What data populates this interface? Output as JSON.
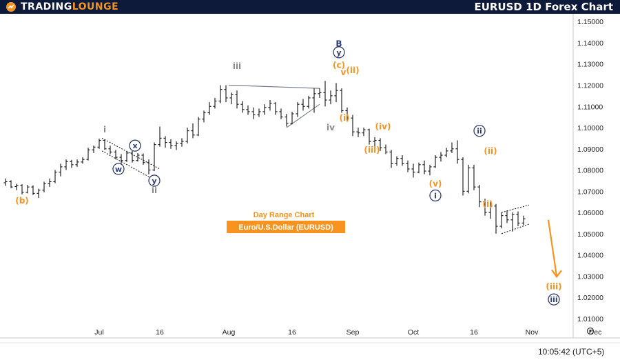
{
  "header": {
    "logo_part1": "TRADING",
    "logo_part2": "LOUNGE",
    "title": "EURUSD 1D Forex Chart"
  },
  "colors": {
    "header_bg": "#0e1a3a",
    "orange": "#f7931e",
    "navy": "#2f3e74",
    "grey": "#8a8a8a",
    "candle": "#111111"
  },
  "chart_data": {
    "type": "candlestick",
    "ylim": [
      1.008,
      1.153
    ],
    "y_ticks": [
      "1.15000",
      "1.14000",
      "1.13000",
      "1.12000",
      "1.11000",
      "1.10000",
      "1.09000",
      "1.08000",
      "1.07000",
      "1.06000",
      "1.05000",
      "1.04000",
      "1.03000",
      "1.02000",
      "1.01000"
    ],
    "x_ticks": [
      {
        "label": "Jul",
        "x": 18
      },
      {
        "label": "16",
        "x": 29
      },
      {
        "label": "Aug",
        "x": 41.5
      },
      {
        "label": "16",
        "x": 53
      },
      {
        "label": "Sep",
        "x": 64
      },
      {
        "label": "Oct",
        "x": 75
      },
      {
        "label": "16",
        "x": 86
      },
      {
        "label": "Nov",
        "x": 96.5
      },
      {
        "label": "Dec",
        "x": 108
      }
    ],
    "candles": [
      [
        1,
        1.074,
        1.076,
        1.0725,
        1.0745
      ],
      [
        2,
        1.0745,
        1.0752,
        1.0715,
        1.072
      ],
      [
        3,
        1.0722,
        1.0735,
        1.0705,
        1.0728
      ],
      [
        4,
        1.0728,
        1.0733,
        1.0685,
        1.0695
      ],
      [
        5,
        1.0695,
        1.073,
        1.069,
        1.072
      ],
      [
        6,
        1.072,
        1.0728,
        1.0682,
        1.069
      ],
      [
        7,
        1.069,
        1.0712,
        1.0668,
        1.0705
      ],
      [
        8,
        1.0705,
        1.0745,
        1.0695,
        1.0735
      ],
      [
        9,
        1.0735,
        1.076,
        1.072,
        1.0745
      ],
      [
        10,
        1.0745,
        1.08,
        1.0738,
        1.079
      ],
      [
        11,
        1.079,
        1.083,
        1.077,
        1.0815
      ],
      [
        12,
        1.0815,
        1.085,
        1.08,
        1.084
      ],
      [
        13,
        1.084,
        1.0848,
        1.081,
        1.0825
      ],
      [
        14,
        1.0825,
        1.085,
        1.0815,
        1.0838
      ],
      [
        15,
        1.0838,
        1.086,
        1.083,
        1.085
      ],
      [
        16,
        1.085,
        1.0905,
        1.0845,
        1.0895
      ],
      [
        17,
        1.0895,
        1.0915,
        1.088,
        1.0908
      ],
      [
        18,
        1.0908,
        1.0948,
        1.09,
        1.094
      ],
      [
        19,
        1.094,
        1.0945,
        1.0895,
        1.09
      ],
      [
        20,
        1.09,
        1.0915,
        1.0875,
        1.0885
      ],
      [
        21,
        1.0885,
        1.0895,
        1.085,
        1.086
      ],
      [
        22,
        1.086,
        1.0875,
        1.083,
        1.0845
      ],
      [
        23,
        1.0845,
        1.089,
        1.0838,
        1.088
      ],
      [
        24,
        1.088,
        1.089,
        1.0835,
        1.0845
      ],
      [
        25,
        1.0845,
        1.088,
        1.084,
        1.087
      ],
      [
        26,
        1.087,
        1.0878,
        1.0825,
        1.0835
      ],
      [
        27,
        1.0835,
        1.085,
        1.078,
        1.08
      ],
      [
        28,
        1.08,
        1.093,
        1.0795,
        1.092
      ],
      [
        29,
        1.092,
        1.1005,
        1.091,
        1.095
      ],
      [
        30,
        1.095,
        1.096,
        1.0905,
        1.093
      ],
      [
        31,
        1.093,
        1.0945,
        1.09,
        1.0915
      ],
      [
        32,
        1.0915,
        1.0935,
        1.0895,
        1.0925
      ],
      [
        33,
        1.0925,
        1.095,
        1.091,
        1.0935
      ],
      [
        34,
        1.0935,
        1.1,
        1.0925,
        1.0985
      ],
      [
        35,
        1.0985,
        1.102,
        1.095,
        1.0965
      ],
      [
        36,
        1.0965,
        1.105,
        1.096,
        1.104
      ],
      [
        37,
        1.104,
        1.108,
        1.1025,
        1.107
      ],
      [
        38,
        1.107,
        1.112,
        1.106,
        1.11
      ],
      [
        39,
        1.11,
        1.114,
        1.109,
        1.1125
      ],
      [
        40,
        1.1125,
        1.12,
        1.1115,
        1.118
      ],
      [
        41,
        1.118,
        1.12,
        1.112,
        1.114
      ],
      [
        42,
        1.114,
        1.1165,
        1.111,
        1.1155
      ],
      [
        43,
        1.1155,
        1.1175,
        1.109,
        1.111
      ],
      [
        44,
        1.111,
        1.1125,
        1.107,
        1.1085
      ],
      [
        45,
        1.1085,
        1.1105,
        1.106,
        1.1075
      ],
      [
        46,
        1.1075,
        1.1095,
        1.104,
        1.106
      ],
      [
        47,
        1.106,
        1.109,
        1.105,
        1.1075
      ],
      [
        48,
        1.1075,
        1.111,
        1.106,
        1.1095
      ],
      [
        49,
        1.1095,
        1.113,
        1.108,
        1.1115
      ],
      [
        50,
        1.1115,
        1.112,
        1.106,
        1.1075
      ],
      [
        51,
        1.1075,
        1.109,
        1.104,
        1.105
      ],
      [
        52,
        1.105,
        1.1065,
        1.1005,
        1.102
      ],
      [
        53,
        1.102,
        1.1075,
        1.1015,
        1.1065
      ],
      [
        54,
        1.1065,
        1.112,
        1.105,
        1.111
      ],
      [
        55,
        1.111,
        1.1135,
        1.108,
        1.11
      ],
      [
        56,
        1.11,
        1.115,
        1.109,
        1.114
      ],
      [
        57,
        1.114,
        1.1185,
        1.107,
        1.116
      ],
      [
        58,
        1.116,
        1.1185,
        1.114,
        1.1165
      ],
      [
        59,
        1.1165,
        1.122,
        1.11,
        1.113
      ],
      [
        60,
        1.113,
        1.1175,
        1.111,
        1.115
      ],
      [
        61,
        1.115,
        1.121,
        1.112,
        1.1175
      ],
      [
        62,
        1.1175,
        1.1185,
        1.107,
        1.108
      ],
      [
        63,
        1.108,
        1.1095,
        1.103,
        1.1045
      ],
      [
        64,
        1.1045,
        1.106,
        1.096,
        1.098
      ],
      [
        65,
        1.098,
        1.1,
        1.0955,
        1.0975
      ],
      [
        66,
        1.0975,
        1.1,
        1.096,
        1.099
      ],
      [
        67,
        1.099,
        1.0995,
        1.092,
        1.0935
      ],
      [
        68,
        1.0935,
        1.0955,
        1.0905,
        1.094
      ],
      [
        69,
        1.094,
        1.095,
        1.089,
        1.0905
      ],
      [
        70,
        1.0905,
        1.092,
        1.0875,
        1.0885
      ],
      [
        71,
        1.0885,
        1.0895,
        1.081,
        1.083
      ],
      [
        72,
        1.083,
        1.0865,
        1.082,
        1.0855
      ],
      [
        73,
        1.0855,
        1.087,
        1.082,
        1.083
      ],
      [
        74,
        1.083,
        1.0845,
        1.079,
        1.0805
      ],
      [
        75,
        1.0805,
        1.083,
        1.0765,
        1.079
      ],
      [
        76,
        1.079,
        1.0835,
        1.0785,
        1.0825
      ],
      [
        77,
        1.0825,
        1.0845,
        1.078,
        1.0795
      ],
      [
        78,
        1.0795,
        1.0825,
        1.0775,
        1.0815
      ],
      [
        79,
        1.0815,
        1.087,
        1.081,
        1.086
      ],
      [
        80,
        1.086,
        1.0885,
        1.084,
        1.087
      ],
      [
        81,
        1.087,
        1.0905,
        1.086,
        1.089
      ],
      [
        82,
        1.089,
        1.093,
        1.088,
        1.09
      ],
      [
        83,
        1.09,
        1.094,
        1.083,
        1.085
      ],
      [
        84,
        1.085,
        1.086,
        1.068,
        1.07
      ],
      [
        85,
        1.07,
        1.0825,
        1.069,
        1.081
      ],
      [
        86,
        1.081,
        1.0825,
        1.0705,
        1.072
      ],
      [
        87,
        1.072,
        1.073,
        1.0625,
        1.065
      ],
      [
        88,
        1.065,
        1.0665,
        1.0585,
        1.06
      ],
      [
        89,
        1.06,
        1.065,
        1.057,
        1.063
      ],
      [
        90,
        1.063,
        1.064,
        1.05,
        1.0535
      ],
      [
        91,
        1.0535,
        1.06,
        1.0525,
        1.0585
      ],
      [
        92,
        1.0585,
        1.061,
        1.055,
        1.0565
      ],
      [
        93,
        1.0565,
        1.06,
        1.051,
        1.059
      ],
      [
        94,
        1.059,
        1.0605,
        1.0535,
        1.055
      ],
      [
        95,
        1.055,
        1.0585,
        1.054,
        1.057
      ]
    ],
    "wave_labels": [
      {
        "text": "(b)",
        "x": 4,
        "y": 1.0655,
        "color": "orange",
        "circle": false
      },
      {
        "text": "i",
        "x": 19,
        "y": 1.099,
        "color": "grey",
        "circle": false
      },
      {
        "text": "x",
        "x": 24.5,
        "y": 1.0915,
        "color": "navy",
        "circle": true
      },
      {
        "text": "w",
        "x": 21.5,
        "y": 1.0805,
        "color": "navy",
        "circle": true
      },
      {
        "text": "y",
        "x": 28,
        "y": 1.075,
        "color": "navy",
        "circle": true
      },
      {
        "text": "ii",
        "x": 28,
        "y": 1.0705,
        "color": "grey",
        "circle": false
      },
      {
        "text": "iii",
        "x": 43,
        "y": 1.129,
        "color": "grey",
        "circle": false
      },
      {
        "text": "B",
        "x": 61.5,
        "y": 1.1395,
        "color": "navy",
        "circle": false
      },
      {
        "text": "y",
        "x": 61.5,
        "y": 1.1355,
        "color": "navy",
        "circle": true
      },
      {
        "text": "(c)",
        "x": 61.5,
        "y": 1.1295,
        "color": "orange",
        "circle": false
      },
      {
        "text": "v",
        "x": 62.3,
        "y": 1.126,
        "color": "orange",
        "circle": false
      },
      {
        "text": "(ii)",
        "x": 64,
        "y": 1.127,
        "color": "orange",
        "circle": false
      },
      {
        "text": "(i)",
        "x": 62.5,
        "y": 1.1045,
        "color": "orange",
        "circle": false
      },
      {
        "text": "iv",
        "x": 60,
        "y": 1.1,
        "color": "grey",
        "circle": false
      },
      {
        "text": "(iv)",
        "x": 69.5,
        "y": 1.1005,
        "color": "orange",
        "circle": false
      },
      {
        "text": "(iii)",
        "x": 67.5,
        "y": 1.0895,
        "color": "orange",
        "circle": false
      },
      {
        "text": "ii",
        "x": 87,
        "y": 1.0985,
        "color": "navy",
        "circle": true
      },
      {
        "text": "(ii)",
        "x": 89,
        "y": 1.089,
        "color": "orange",
        "circle": false
      },
      {
        "text": "(v)",
        "x": 79,
        "y": 1.0735,
        "color": "orange",
        "circle": false
      },
      {
        "text": "i",
        "x": 79,
        "y": 1.068,
        "color": "navy",
        "circle": true
      },
      {
        "text": "(i)",
        "x": 88.5,
        "y": 1.064,
        "color": "orange",
        "circle": false
      },
      {
        "text": "(iii)",
        "x": 100.5,
        "y": 1.025,
        "color": "orange",
        "circle": false
      },
      {
        "text": "iii",
        "x": 100.5,
        "y": 1.019,
        "color": "navy",
        "circle": true
      }
    ],
    "annotations": {
      "range_text": "Day Range Chart",
      "pair_text": "Euro/U.S.Dollar (EURUSD)"
    },
    "projection_arrow": {
      "from": [
        99.5,
        1.0565
      ],
      "to": [
        101,
        1.03
      ]
    },
    "grid": false,
    "time": "10:05:42 (UTC+5)"
  }
}
